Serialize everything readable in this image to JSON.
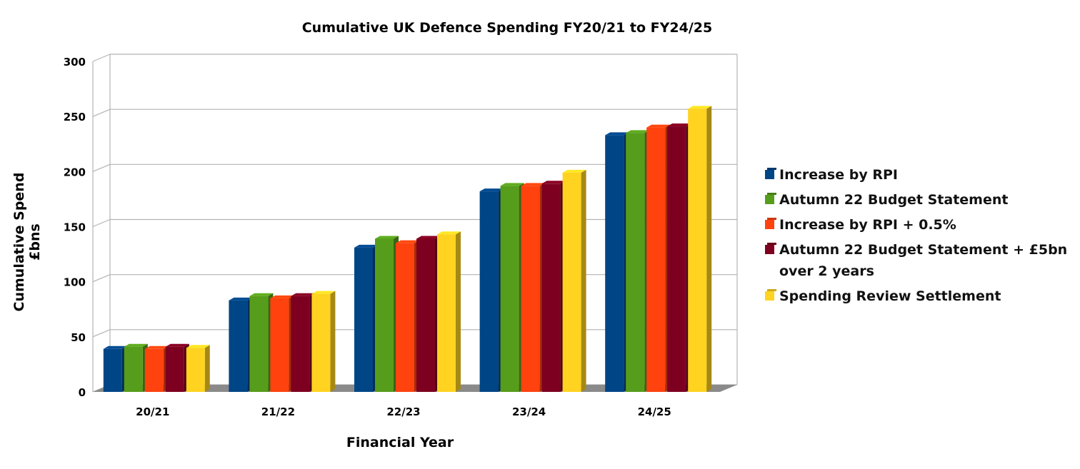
{
  "chart_data": {
    "type": "bar",
    "title": "Cumulative UK Defence Spending FY20/21 to FY24/25",
    "xlabel": "Financial Year",
    "ylabel": "Cumulative Spend £bns",
    "categories": [
      "20/21",
      "21/22",
      "22/23",
      "23/24",
      "24/25"
    ],
    "ylim": [
      0,
      300
    ],
    "yticks": [
      0,
      50,
      100,
      150,
      200,
      250,
      300
    ],
    "ytick_labels": [
      "0",
      "50",
      "100",
      "150",
      "200",
      "250",
      "300"
    ],
    "grid": true,
    "legend_position": "right",
    "series": [
      {
        "name": "Increase by RPI",
        "color": "#004586",
        "values": [
          39,
          83,
          131,
          182,
          233
        ]
      },
      {
        "name": "Autumn 22 Budget Statement",
        "color": "#579d1c",
        "values": [
          41,
          87,
          139,
          187,
          235
        ]
      },
      {
        "name": "Increase by RPI + 0.5%",
        "color": "#ff420e",
        "values": [
          39,
          85,
          135,
          187,
          240
        ]
      },
      {
        "name": "Autumn 22 Budget Statement + £5bn over 2 years",
        "color": "#7e0021",
        "values": [
          41,
          87,
          139,
          189,
          241
        ]
      },
      {
        "name": "Spending Review Settlement",
        "color": "#ffd320",
        "values": [
          40,
          89,
          143,
          199,
          257
        ]
      }
    ]
  }
}
